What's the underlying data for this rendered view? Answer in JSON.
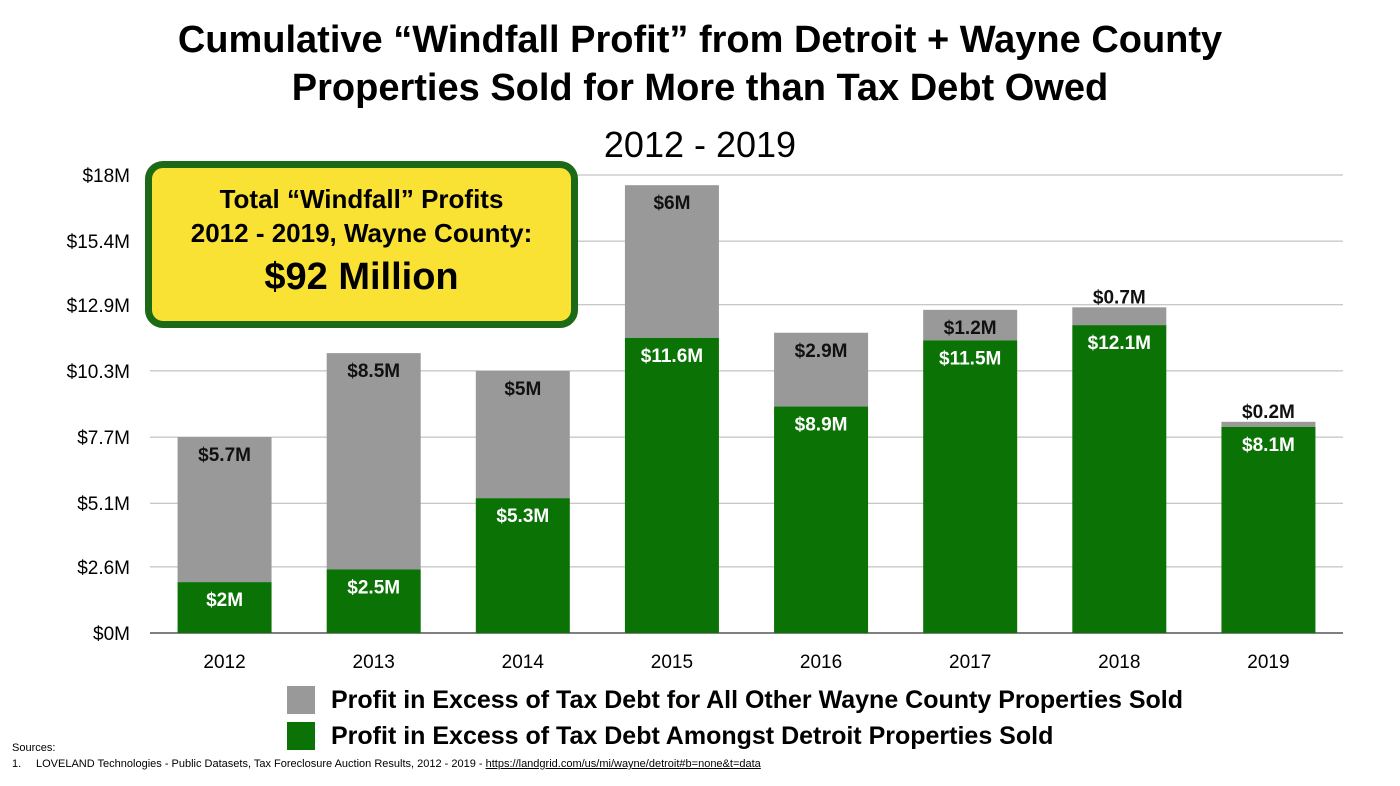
{
  "title": {
    "line1": "Cumulative “Windfall Profit” from Detroit + Wayne County",
    "line2": "Properties Sold for More than Tax Debt Owed",
    "subtitle": "2012 - 2019"
  },
  "callout": {
    "line1": "Total “Windfall” Profits",
    "line2": "2012 - 2019, Wayne County:",
    "line3": "$92 Million"
  },
  "chart_data": {
    "type": "bar",
    "stacked": true,
    "categories": [
      "2012",
      "2013",
      "2014",
      "2015",
      "2016",
      "2017",
      "2018",
      "2019"
    ],
    "series": [
      {
        "name": "Profit in Excess of Tax Debt Amongst Detroit Properties Sold",
        "color": "#0b7306",
        "values": [
          2,
          2.5,
          5.3,
          11.6,
          8.9,
          11.5,
          12.1,
          8.1
        ],
        "labels": [
          "$2M",
          "$2.5M",
          "$5.3M",
          "$11.6M",
          "$8.9M",
          "$11.5M",
          "$12.1M",
          "$8.1M"
        ]
      },
      {
        "name": "Profit in Excess of Tax Debt for All Other Wayne County Properties Sold",
        "color": "#999999",
        "values": [
          5.7,
          8.5,
          5,
          6,
          2.9,
          1.2,
          0.7,
          0.2
        ],
        "labels": [
          "$5.7M",
          "$8.5M",
          "$5M",
          "$6M",
          "$2.9M",
          "$1.2M",
          "$0.7M",
          "$0.2M"
        ]
      }
    ],
    "yticks": [
      0,
      2.6,
      5.1,
      7.7,
      10.3,
      12.9,
      15.4,
      18
    ],
    "yticklabels": [
      "$0M",
      "$2.6M",
      "$5.1M",
      "$7.7M",
      "$10.3M",
      "$12.9M",
      "$15.4M",
      "$18M"
    ],
    "ylim": [
      0,
      18
    ],
    "grid": true,
    "legend_position": "bottom"
  },
  "legend": [
    {
      "label": "Profit in Excess of Tax Debt for All Other Wayne County Properties Sold",
      "color": "#999999"
    },
    {
      "label": "Profit in Excess of Tax Debt Amongst Detroit Properties Sold",
      "color": "#0b7306"
    }
  ],
  "sources": {
    "heading": "Sources:",
    "items": [
      {
        "number": "1.",
        "text": "LOVELAND Technologies - Public Datasets, Tax Foreclosure Auction Results, 2012 - 2019 - ",
        "link": "https://landgrid.com/us/mi/wayne/detroit#b=none&t=data"
      }
    ]
  }
}
